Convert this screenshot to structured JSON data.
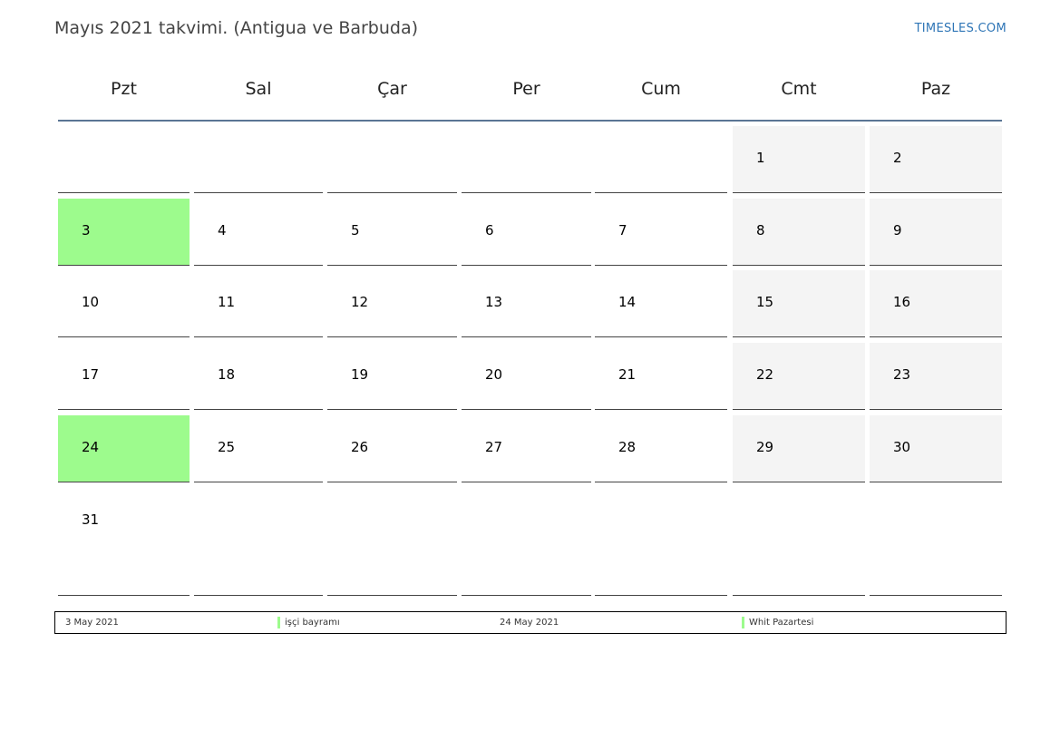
{
  "header": {
    "title": "Mayıs 2021 takvimi. (Antigua ve Barbuda)",
    "brand": "TIMESLES.COM"
  },
  "weekdays": [
    "Pzt",
    "Sal",
    "Çar",
    "Per",
    "Cum",
    "Cmt",
    "Paz"
  ],
  "weeks": [
    [
      null,
      null,
      null,
      null,
      null,
      1,
      2
    ],
    [
      3,
      4,
      5,
      6,
      7,
      8,
      9
    ],
    [
      10,
      11,
      12,
      13,
      14,
      15,
      16
    ],
    [
      17,
      18,
      19,
      20,
      21,
      22,
      23
    ],
    [
      24,
      25,
      26,
      27,
      28,
      29,
      30
    ],
    [
      31,
      null,
      null,
      null,
      null,
      null,
      null
    ]
  ],
  "highlighted_days": [
    3,
    24
  ],
  "colors": {
    "holiday": "#9dfb8d",
    "weekend": "#f4f4f4",
    "header_rule": "#5a7594",
    "brand": "#2e75b6"
  },
  "legend": [
    {
      "date": "3 May 2021",
      "name": "işçi bayramı"
    },
    {
      "date": "24 May 2021",
      "name": "Whit Pazartesi"
    }
  ]
}
